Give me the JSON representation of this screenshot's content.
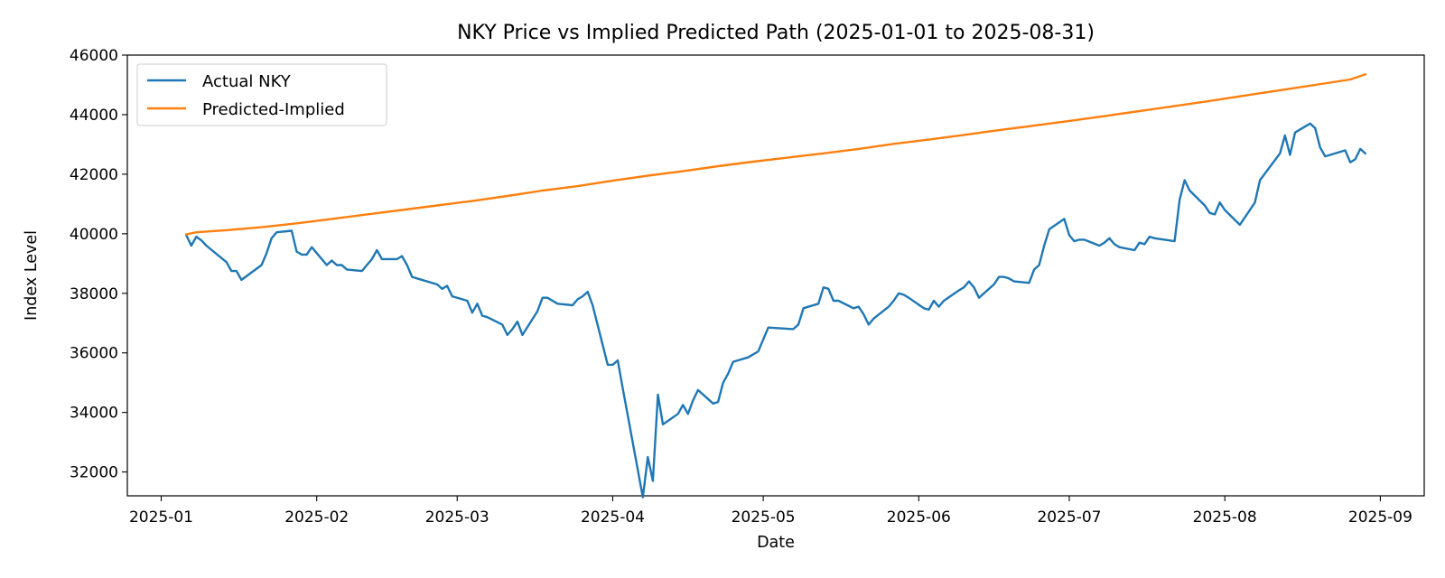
{
  "chart_data": {
    "type": "line",
    "title": "NKY Price vs Implied Predicted Path (2025-01-01 to 2025-08-31)",
    "xlabel": "Date",
    "ylabel": "Index Level",
    "xlim": [
      "2025-01-01",
      "2025-09-01"
    ],
    "ylim": [
      31200,
      46000
    ],
    "x_ticks": [
      "2025-01",
      "2025-02",
      "2025-03",
      "2025-04",
      "2025-05",
      "2025-06",
      "2025-07",
      "2025-08",
      "2025-09"
    ],
    "y_ticks": [
      32000,
      34000,
      36000,
      38000,
      40000,
      42000,
      44000,
      46000
    ],
    "grid": false,
    "legend": "top-left",
    "series": [
      {
        "name": "Actual NKY",
        "color": "#1f77b4",
        "points": [
          [
            "2025-01-06",
            39950
          ],
          [
            "2025-01-07",
            39600
          ],
          [
            "2025-01-08",
            39900
          ],
          [
            "2025-01-09",
            39780
          ],
          [
            "2025-01-10",
            39600
          ],
          [
            "2025-01-14",
            39050
          ],
          [
            "2025-01-15",
            38750
          ],
          [
            "2025-01-16",
            38750
          ],
          [
            "2025-01-17",
            38450
          ],
          [
            "2025-01-21",
            38950
          ],
          [
            "2025-01-22",
            39350
          ],
          [
            "2025-01-23",
            39850
          ],
          [
            "2025-01-24",
            40050
          ],
          [
            "2025-01-27",
            40100
          ],
          [
            "2025-01-28",
            39400
          ],
          [
            "2025-01-29",
            39300
          ],
          [
            "2025-01-30",
            39300
          ],
          [
            "2025-01-31",
            39550
          ],
          [
            "2025-02-03",
            38950
          ],
          [
            "2025-02-04",
            39100
          ],
          [
            "2025-02-05",
            38950
          ],
          [
            "2025-02-06",
            38950
          ],
          [
            "2025-02-07",
            38800
          ],
          [
            "2025-02-10",
            38750
          ],
          [
            "2025-02-12",
            39150
          ],
          [
            "2025-02-13",
            39450
          ],
          [
            "2025-02-14",
            39150
          ],
          [
            "2025-02-17",
            39150
          ],
          [
            "2025-02-18",
            39250
          ],
          [
            "2025-02-19",
            38950
          ],
          [
            "2025-02-20",
            38550
          ],
          [
            "2025-02-21",
            38500
          ],
          [
            "2025-02-25",
            38300
          ],
          [
            "2025-02-26",
            38150
          ],
          [
            "2025-02-27",
            38250
          ],
          [
            "2025-02-28",
            37900
          ],
          [
            "2025-03-03",
            37750
          ],
          [
            "2025-03-04",
            37350
          ],
          [
            "2025-03-05",
            37650
          ],
          [
            "2025-03-06",
            37250
          ],
          [
            "2025-03-07",
            37200
          ],
          [
            "2025-03-10",
            36950
          ],
          [
            "2025-03-11",
            36600
          ],
          [
            "2025-03-12",
            36800
          ],
          [
            "2025-03-13",
            37050
          ],
          [
            "2025-03-14",
            36600
          ],
          [
            "2025-03-17",
            37400
          ],
          [
            "2025-03-18",
            37850
          ],
          [
            "2025-03-19",
            37850
          ],
          [
            "2025-03-21",
            37650
          ],
          [
            "2025-03-24",
            37600
          ],
          [
            "2025-03-25",
            37800
          ],
          [
            "2025-03-26",
            37900
          ],
          [
            "2025-03-27",
            38050
          ],
          [
            "2025-03-28",
            37600
          ],
          [
            "2025-03-31",
            35600
          ],
          [
            "2025-04-01",
            35600
          ],
          [
            "2025-04-02",
            35750
          ],
          [
            "2025-04-03",
            34800
          ],
          [
            "2025-04-04",
            33900
          ],
          [
            "2025-04-07",
            31150
          ],
          [
            "2025-04-08",
            32500
          ],
          [
            "2025-04-09",
            31700
          ],
          [
            "2025-04-10",
            34600
          ],
          [
            "2025-04-11",
            33600
          ],
          [
            "2025-04-14",
            33950
          ],
          [
            "2025-04-15",
            34250
          ],
          [
            "2025-04-16",
            33950
          ],
          [
            "2025-04-17",
            34400
          ],
          [
            "2025-04-18",
            34750
          ],
          [
            "2025-04-21",
            34300
          ],
          [
            "2025-04-22",
            34350
          ],
          [
            "2025-04-23",
            35000
          ],
          [
            "2025-04-24",
            35300
          ],
          [
            "2025-04-25",
            35700
          ],
          [
            "2025-04-28",
            35850
          ],
          [
            "2025-04-30",
            36050
          ],
          [
            "2025-05-01",
            36450
          ],
          [
            "2025-05-02",
            36850
          ],
          [
            "2025-05-07",
            36800
          ],
          [
            "2025-05-08",
            36950
          ],
          [
            "2025-05-09",
            37500
          ],
          [
            "2025-05-12",
            37650
          ],
          [
            "2025-05-13",
            38200
          ],
          [
            "2025-05-14",
            38150
          ],
          [
            "2025-05-15",
            37750
          ],
          [
            "2025-05-16",
            37750
          ],
          [
            "2025-05-19",
            37500
          ],
          [
            "2025-05-20",
            37550
          ],
          [
            "2025-05-21",
            37300
          ],
          [
            "2025-05-22",
            36950
          ],
          [
            "2025-05-23",
            37150
          ],
          [
            "2025-05-26",
            37550
          ],
          [
            "2025-05-27",
            37750
          ],
          [
            "2025-05-28",
            38000
          ],
          [
            "2025-05-29",
            37950
          ],
          [
            "2025-05-30",
            37850
          ],
          [
            "2025-06-02",
            37500
          ],
          [
            "2025-06-03",
            37450
          ],
          [
            "2025-06-04",
            37750
          ],
          [
            "2025-06-05",
            37550
          ],
          [
            "2025-06-06",
            37750
          ],
          [
            "2025-06-09",
            38100
          ],
          [
            "2025-06-10",
            38200
          ],
          [
            "2025-06-11",
            38400
          ],
          [
            "2025-06-12",
            38200
          ],
          [
            "2025-06-13",
            37850
          ],
          [
            "2025-06-16",
            38300
          ],
          [
            "2025-06-17",
            38550
          ],
          [
            "2025-06-18",
            38550
          ],
          [
            "2025-06-19",
            38500
          ],
          [
            "2025-06-20",
            38400
          ],
          [
            "2025-06-23",
            38350
          ],
          [
            "2025-06-24",
            38800
          ],
          [
            "2025-06-25",
            38950
          ],
          [
            "2025-06-26",
            39600
          ],
          [
            "2025-06-27",
            40150
          ],
          [
            "2025-06-30",
            40500
          ],
          [
            "2025-07-01",
            39950
          ],
          [
            "2025-07-02",
            39750
          ],
          [
            "2025-07-03",
            39800
          ],
          [
            "2025-07-04",
            39800
          ],
          [
            "2025-07-07",
            39600
          ],
          [
            "2025-07-08",
            39700
          ],
          [
            "2025-07-09",
            39850
          ],
          [
            "2025-07-10",
            39650
          ],
          [
            "2025-07-11",
            39550
          ],
          [
            "2025-07-14",
            39450
          ],
          [
            "2025-07-15",
            39700
          ],
          [
            "2025-07-16",
            39650
          ],
          [
            "2025-07-17",
            39900
          ],
          [
            "2025-07-18",
            39850
          ],
          [
            "2025-07-22",
            39750
          ],
          [
            "2025-07-23",
            41150
          ],
          [
            "2025-07-24",
            41800
          ],
          [
            "2025-07-25",
            41450
          ],
          [
            "2025-07-28",
            40950
          ],
          [
            "2025-07-29",
            40700
          ],
          [
            "2025-07-30",
            40650
          ],
          [
            "2025-07-31",
            41050
          ],
          [
            "2025-08-01",
            40800
          ],
          [
            "2025-08-04",
            40300
          ],
          [
            "2025-08-05",
            40550
          ],
          [
            "2025-08-06",
            40800
          ],
          [
            "2025-08-07",
            41050
          ],
          [
            "2025-08-08",
            41800
          ],
          [
            "2025-08-12",
            42700
          ],
          [
            "2025-08-13",
            43300
          ],
          [
            "2025-08-14",
            42650
          ],
          [
            "2025-08-15",
            43400
          ],
          [
            "2025-08-18",
            43700
          ],
          [
            "2025-08-19",
            43550
          ],
          [
            "2025-08-20",
            42900
          ],
          [
            "2025-08-21",
            42600
          ],
          [
            "2025-08-22",
            42650
          ],
          [
            "2025-08-25",
            42800
          ],
          [
            "2025-08-26",
            42400
          ],
          [
            "2025-08-27",
            42500
          ],
          [
            "2025-08-28",
            42850
          ],
          [
            "2025-08-29",
            42700
          ]
        ]
      },
      {
        "name": "Predicted-Implied",
        "color": "#ff7f0e",
        "points": [
          [
            "2025-01-06",
            39980
          ],
          [
            "2025-01-08",
            40050
          ],
          [
            "2025-01-14",
            40120
          ],
          [
            "2025-01-21",
            40220
          ],
          [
            "2025-01-28",
            40350
          ],
          [
            "2025-02-04",
            40500
          ],
          [
            "2025-02-11",
            40650
          ],
          [
            "2025-02-18",
            40800
          ],
          [
            "2025-02-25",
            40950
          ],
          [
            "2025-03-04",
            41100
          ],
          [
            "2025-03-11",
            41270
          ],
          [
            "2025-03-18",
            41450
          ],
          [
            "2025-03-25",
            41600
          ],
          [
            "2025-04-01",
            41780
          ],
          [
            "2025-04-08",
            41950
          ],
          [
            "2025-04-15",
            42100
          ],
          [
            "2025-04-22",
            42270
          ],
          [
            "2025-04-29",
            42420
          ],
          [
            "2025-05-06",
            42560
          ],
          [
            "2025-05-13",
            42700
          ],
          [
            "2025-05-20",
            42850
          ],
          [
            "2025-05-27",
            43020
          ],
          [
            "2025-06-03",
            43160
          ],
          [
            "2025-06-10",
            43320
          ],
          [
            "2025-06-17",
            43480
          ],
          [
            "2025-06-24",
            43630
          ],
          [
            "2025-07-01",
            43790
          ],
          [
            "2025-07-08",
            43950
          ],
          [
            "2025-07-15",
            44120
          ],
          [
            "2025-07-22",
            44290
          ],
          [
            "2025-07-29",
            44460
          ],
          [
            "2025-08-05",
            44640
          ],
          [
            "2025-08-12",
            44820
          ],
          [
            "2025-08-19",
            45000
          ],
          [
            "2025-08-26",
            45180
          ],
          [
            "2025-08-29",
            45350
          ]
        ]
      }
    ]
  }
}
